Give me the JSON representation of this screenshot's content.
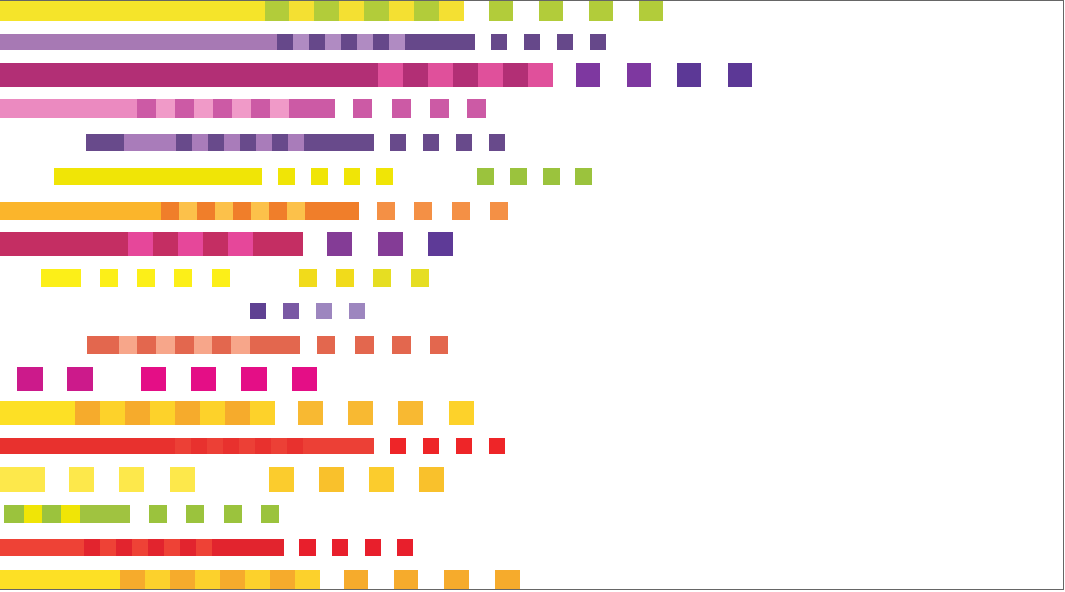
{
  "artwork": {
    "background": "#ffffff",
    "frame_color": "#666666",
    "rows": [
      {
        "palette": [
          "#f5e42a",
          "#b2cc3a",
          "#f4e032"
        ]
      },
      {
        "palette": [
          "#a779b4",
          "#66488a",
          "#b08bc2"
        ]
      },
      {
        "palette": [
          "#b22f75",
          "#e0509b",
          "#7e38a0",
          "#5c3896"
        ]
      },
      {
        "palette": [
          "#eb8ac0",
          "#cc5aa5",
          "#f09ac8"
        ]
      },
      {
        "palette": [
          "#684a8b",
          "#a97cba"
        ]
      },
      {
        "palette": [
          "#f0e506",
          "#9bc33d"
        ]
      },
      {
        "palette": [
          "#fbb52b",
          "#f07e2a",
          "#fcc14a",
          "#f49045"
        ]
      },
      {
        "palette": [
          "#c42e63",
          "#e6479a",
          "#843c96",
          "#5e3a97"
        ]
      },
      {
        "palette": [
          "#fcef18",
          "#f1db1b",
          "#e6de22"
        ]
      },
      {
        "palette": [
          "#5f4192",
          "#7a59a4",
          "#9d86bf"
        ]
      },
      {
        "palette": [
          "#e3674e",
          "#f7a68a"
        ]
      },
      {
        "palette": [
          "#cc1a8b",
          "#e40e86"
        ]
      },
      {
        "palette": [
          "#fde025",
          "#f6ab2c",
          "#fdd22a",
          "#f8b932"
        ]
      },
      {
        "palette": [
          "#e8312e",
          "#ec4036",
          "#ee2528"
        ]
      },
      {
        "palette": [
          "#fde84b",
          "#fbcc2d",
          "#f9c12c"
        ]
      },
      {
        "palette": [
          "#9bc33d",
          "#f0e506",
          "#a0c340"
        ]
      },
      {
        "palette": [
          "#ee4236",
          "#e2242e",
          "#e81f2c"
        ]
      },
      {
        "palette": [
          "#fde025",
          "#f6ab2c",
          "#fcd12c"
        ]
      }
    ]
  }
}
